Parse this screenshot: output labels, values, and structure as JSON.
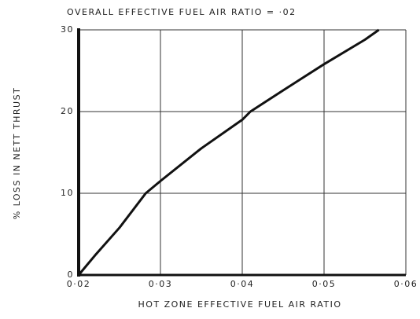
{
  "chart_data": {
    "type": "line",
    "title": "OVERALL EFFECTIVE FUEL AIR RATIO = ·02",
    "xlabel": "HOT ZONE EFFECTIVE FUEL AIR RATIO",
    "ylabel": "% LOSS IN NETT THRUST",
    "x": [
      0.02,
      0.021,
      0.022,
      0.025,
      0.0282,
      0.03,
      0.035,
      0.04,
      0.041,
      0.045,
      0.05,
      0.055,
      0.0567
    ],
    "series": [
      {
        "color": "#111111",
        "values": [
          0,
          1.2,
          2.4,
          5.8,
          10,
          11.5,
          15.5,
          19,
          20,
          22.6,
          25.8,
          28.8,
          30
        ]
      }
    ],
    "xlim": [
      0.02,
      0.06
    ],
    "xticks": [
      {
        "value": 0.02,
        "label": "0·02"
      },
      {
        "value": 0.03,
        "label": "0·03"
      },
      {
        "value": 0.04,
        "label": "0·04"
      },
      {
        "value": 0.05,
        "label": "0·05"
      },
      {
        "value": 0.06,
        "label": "0·06"
      }
    ],
    "ylim": [
      0,
      30
    ],
    "yticks": [
      0,
      10,
      20,
      30
    ],
    "grid": true
  }
}
